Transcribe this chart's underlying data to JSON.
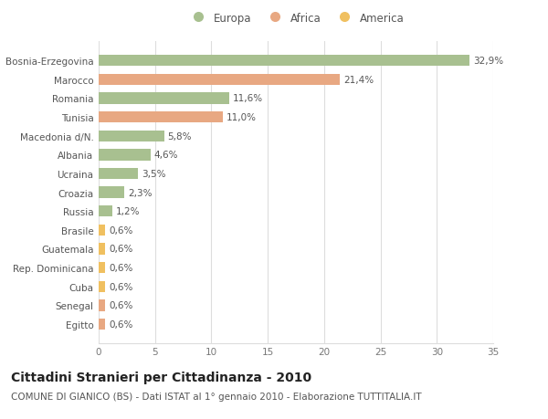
{
  "categories": [
    "Bosnia-Erzegovina",
    "Marocco",
    "Romania",
    "Tunisia",
    "Macedonia d/N.",
    "Albania",
    "Ucraina",
    "Croazia",
    "Russia",
    "Brasile",
    "Guatemala",
    "Rep. Dominicana",
    "Cuba",
    "Senegal",
    "Egitto"
  ],
  "values": [
    32.9,
    21.4,
    11.6,
    11.0,
    5.8,
    4.6,
    3.5,
    2.3,
    1.2,
    0.6,
    0.6,
    0.6,
    0.6,
    0.6,
    0.6
  ],
  "labels": [
    "32,9%",
    "21,4%",
    "11,6%",
    "11,0%",
    "5,8%",
    "4,6%",
    "3,5%",
    "2,3%",
    "1,2%",
    "0,6%",
    "0,6%",
    "0,6%",
    "0,6%",
    "0,6%",
    "0,6%"
  ],
  "continent": [
    "Europa",
    "Africa",
    "Europa",
    "Africa",
    "Europa",
    "Europa",
    "Europa",
    "Europa",
    "Europa",
    "America",
    "America",
    "America",
    "America",
    "Africa",
    "Africa"
  ],
  "colors": {
    "Europa": "#a8c090",
    "Africa": "#e8a882",
    "America": "#f0c060"
  },
  "title": "Cittadini Stranieri per Cittadinanza - 2010",
  "subtitle": "COMUNE DI GIANICO (BS) - Dati ISTAT al 1° gennaio 2010 - Elaborazione TUTTITALIA.IT",
  "xlim": [
    0,
    35
  ],
  "xticks": [
    0,
    5,
    10,
    15,
    20,
    25,
    30,
    35
  ],
  "background_color": "#ffffff",
  "grid_color": "#dddddd",
  "bar_height": 0.6,
  "title_fontsize": 10,
  "subtitle_fontsize": 7.5,
  "label_fontsize": 7.5,
  "tick_fontsize": 7.5,
  "legend_fontsize": 8.5
}
